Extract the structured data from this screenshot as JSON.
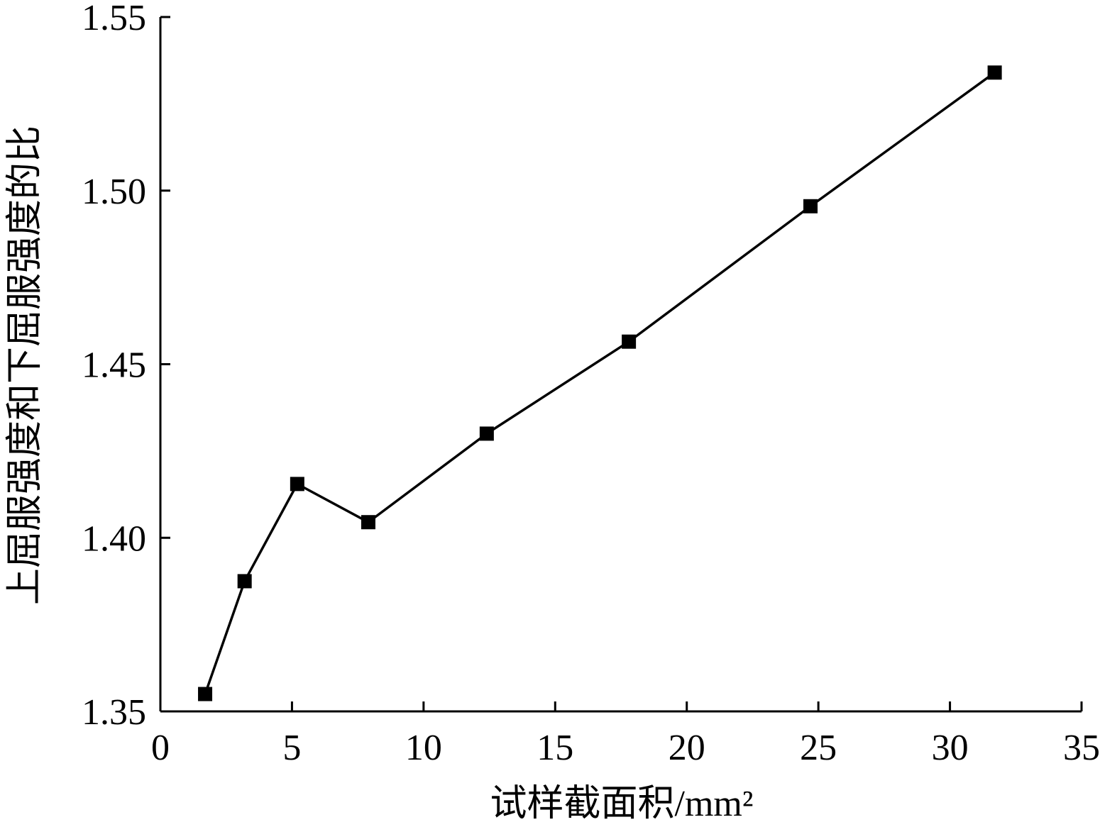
{
  "chart_data": {
    "type": "line",
    "title": "",
    "xlabel": "试样截面积/mm²",
    "ylabel": "上屈服强度和下屈服强度的比",
    "xlim": [
      0,
      35
    ],
    "ylim": [
      1.35,
      1.55
    ],
    "x_ticks": [
      "0",
      "5",
      "10",
      "15",
      "20",
      "25",
      "30",
      "35"
    ],
    "y_ticks": [
      "1.35",
      "1.40",
      "1.45",
      "1.50",
      "1.55"
    ],
    "grid": false,
    "marker": "square",
    "colors": {
      "line": "#000000",
      "marker": "#000000"
    },
    "series": [
      {
        "x": [
          1.7,
          3.2,
          5.2,
          7.9,
          12.4,
          17.8,
          24.7,
          31.7
        ],
        "y": [
          1.355,
          1.3875,
          1.4155,
          1.4045,
          1.43,
          1.4565,
          1.4955,
          1.534
        ]
      }
    ]
  }
}
